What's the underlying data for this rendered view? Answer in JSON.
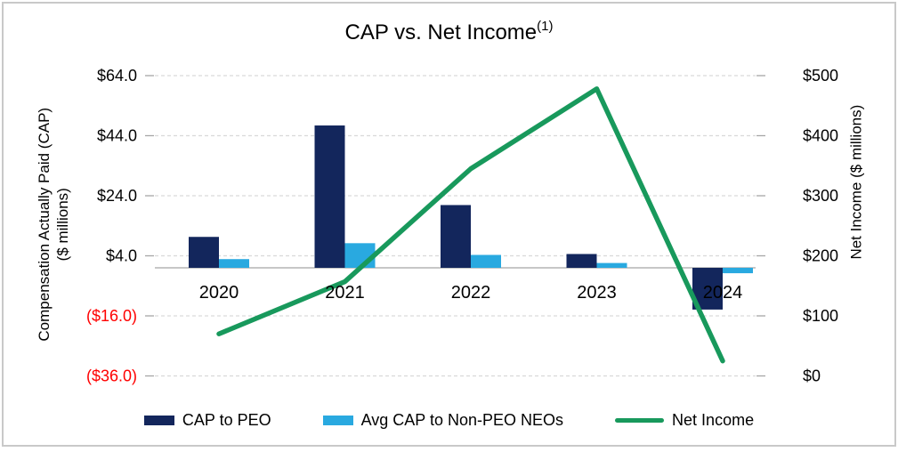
{
  "title": {
    "text": "CAP vs. Net Income",
    "superscript": "(1)"
  },
  "left_axis": {
    "title_line1": "Compensation Actually Paid (CAP)",
    "title_line2": "($ millions)",
    "negative_color": "#FF0000",
    "ticks": [
      {
        "label": "$64.0",
        "value": 64
      },
      {
        "label": "$44.0",
        "value": 44
      },
      {
        "label": "$24.0",
        "value": 24
      },
      {
        "label": "$4.0",
        "value": 4
      },
      {
        "label": "($16.0)",
        "value": -16
      },
      {
        "label": "($36.0)",
        "value": -36
      }
    ]
  },
  "right_axis": {
    "title": "Net Income ($ millions)",
    "ticks": [
      {
        "label": "$500",
        "value": 500
      },
      {
        "label": "$400",
        "value": 400
      },
      {
        "label": "$300",
        "value": 300
      },
      {
        "label": "$200",
        "value": 200
      },
      {
        "label": "$100",
        "value": 100
      },
      {
        "label": "$0",
        "value": 0
      }
    ]
  },
  "legend": [
    {
      "label": "CAP to PEO",
      "color": "#13265C",
      "marker": "bar"
    },
    {
      "label": "Avg CAP to Non-PEO NEOs",
      "color": "#29A9E0",
      "marker": "bar"
    },
    {
      "label": "Net Income",
      "color": "#18995C",
      "marker": "line"
    }
  ],
  "colors": {
    "cap_peo": "#13265C",
    "avg_cap_neo": "#29A9E0",
    "net_income": "#18995C",
    "gridline": "#D9D9D9",
    "zero_line": "#BFBFBF",
    "tick_mark": "#A6A6A6",
    "negative_tick_text": "#FF0000",
    "text": "#000000"
  },
  "chart_data": {
    "type": "bar+line combo",
    "title": "CAP vs. Net Income(1)",
    "categories": [
      "2020",
      "2021",
      "2022",
      "2023",
      "2024"
    ],
    "series": [
      {
        "name": "CAP to PEO",
        "type": "bar",
        "axis": "left",
        "color": "#13265C",
        "values": [
          10.3,
          47.4,
          20.9,
          4.6,
          -13.9
        ]
      },
      {
        "name": "Avg CAP to Non-PEO NEOs",
        "type": "bar",
        "axis": "left",
        "color": "#29A9E0",
        "values": [
          2.9,
          8.2,
          4.3,
          1.6,
          -1.8
        ]
      },
      {
        "name": "Net Income",
        "type": "line",
        "axis": "right",
        "color": "#18995C",
        "values": [
          70,
          157,
          345,
          478,
          25
        ]
      }
    ],
    "left_ylabel": "Compensation Actually Paid (CAP) ($ millions)",
    "right_ylabel": "Net Income ($ millions)",
    "left_ylim": [
      -36,
      64
    ],
    "right_ylim": [
      0,
      500
    ],
    "grid": "horizontal dashed",
    "legend_position": "bottom"
  }
}
